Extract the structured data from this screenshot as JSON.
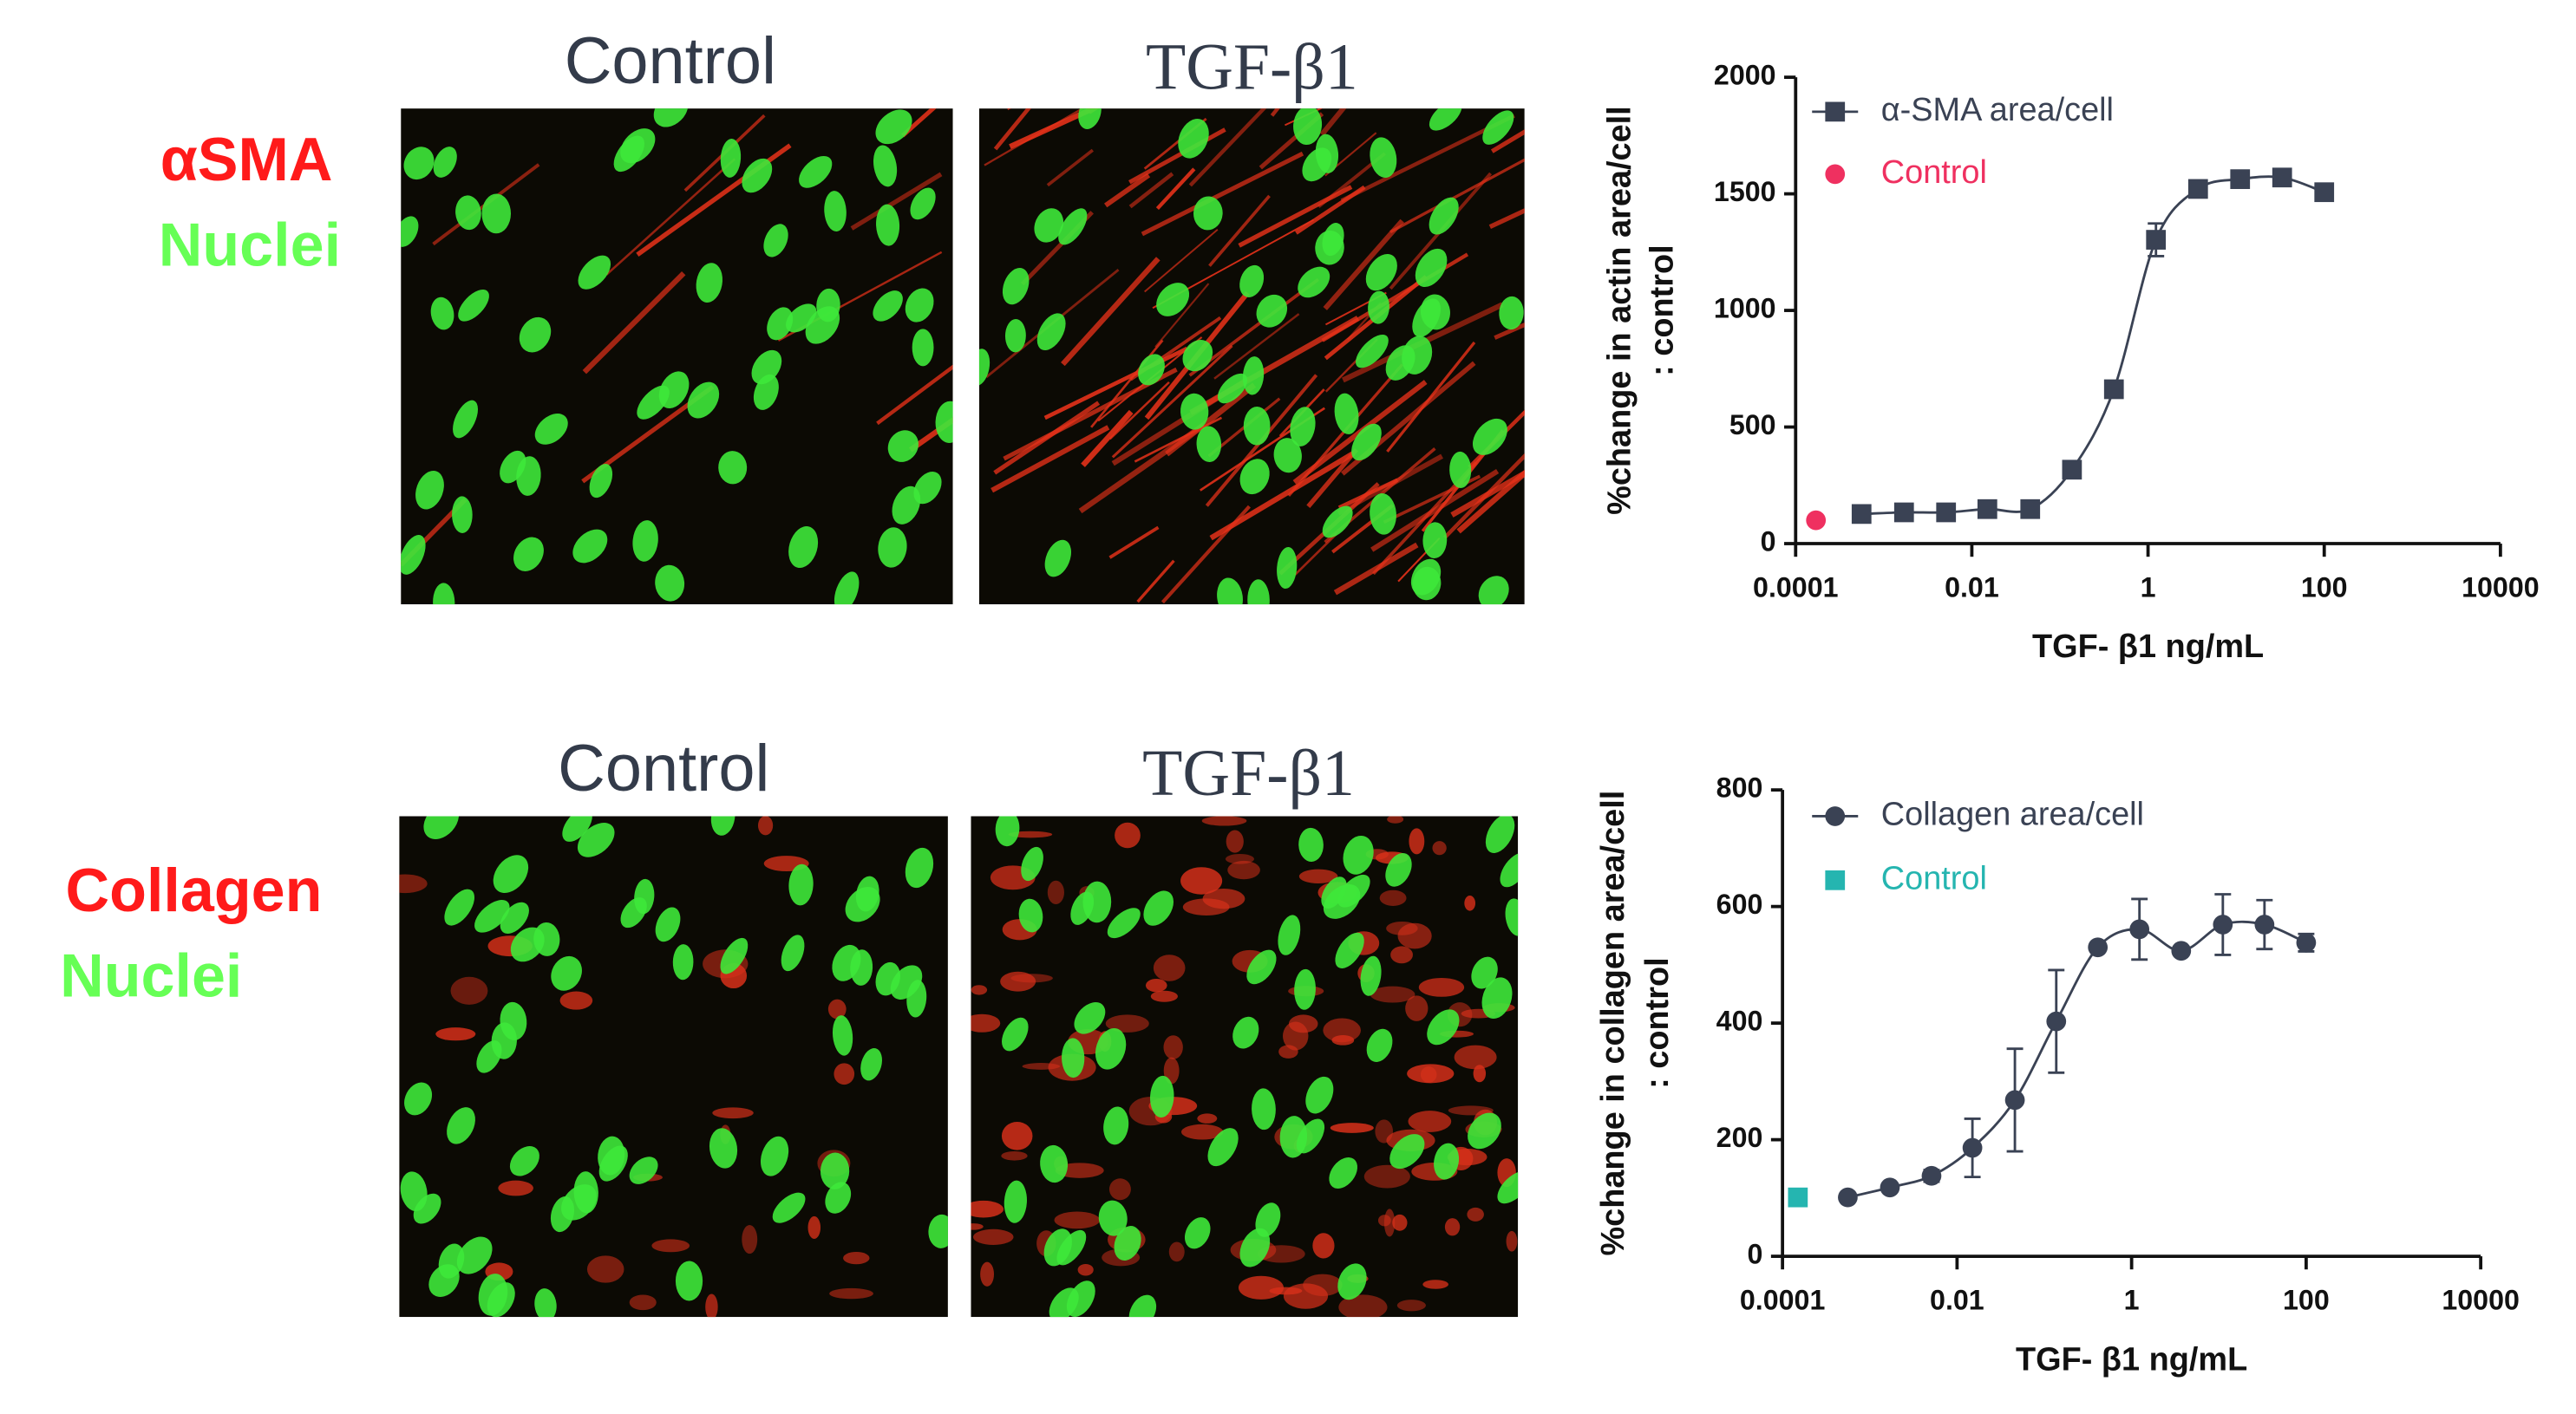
{
  "panels": [
    {
      "label_1": "αSMA",
      "label_2": "Nuclei",
      "image_titles": [
        "Control",
        "TGF-β1"
      ]
    },
    {
      "label_1": "Collagen",
      "label_2": "Nuclei",
      "image_titles": [
        "Control",
        "TGF-β1"
      ]
    }
  ],
  "chart_data": [
    {
      "type": "scatter",
      "xscale": "log",
      "xlabel": "TGF- β1 ng/mL",
      "ylabel": [
        "%change in actin area/cell",
        ": control"
      ],
      "xlim": [
        0.0001,
        10000
      ],
      "xticks": [
        0.0001,
        0.01,
        1,
        100,
        10000
      ],
      "ylim": [
        0,
        2000
      ],
      "yticks": [
        0,
        500,
        1000,
        1500,
        2000
      ],
      "series": [
        {
          "name": "α-SMA area/cell",
          "color": "#3a4254",
          "marker": "square",
          "fit": true,
          "x": [
            0.00056,
            0.0017,
            0.0051,
            0.015,
            0.046,
            0.137,
            0.41,
            1.23,
            3.7,
            11.1,
            33.3,
            100
          ],
          "values": [
            127,
            134,
            134,
            148,
            148,
            317,
            662,
            1303,
            1521,
            1563,
            1570,
            1507
          ],
          "errors": [
            null,
            null,
            null,
            null,
            null,
            null,
            null,
            70,
            null,
            null,
            null,
            null
          ]
        },
        {
          "name": "Control",
          "color": "#ef3060",
          "marker": "circle",
          "x": [
            0.00017
          ],
          "values": [
            100
          ]
        }
      ]
    },
    {
      "type": "scatter",
      "xscale": "log",
      "xlabel": "TGF- β1 ng/mL",
      "ylabel": [
        "%change in collagen area/cell",
        ": control"
      ],
      "xlim": [
        0.0001,
        10000
      ],
      "xticks": [
        0.0001,
        0.01,
        1,
        100,
        10000
      ],
      "ylim": [
        0,
        800
      ],
      "yticks": [
        0,
        200,
        400,
        600,
        800
      ],
      "series": [
        {
          "name": "Collagen area/cell",
          "color": "#3a4254",
          "marker": "circle",
          "fit": true,
          "x": [
            0.00056,
            0.0017,
            0.0051,
            0.015,
            0.046,
            0.137,
            0.41,
            1.23,
            3.7,
            11.1,
            33.3,
            100
          ],
          "values": [
            101,
            118,
            138,
            186,
            268,
            403,
            530,
            561,
            524,
            569,
            569,
            538
          ],
          "errors": [
            null,
            null,
            10,
            50,
            88,
            88,
            null,
            52,
            null,
            52,
            42,
            15
          ]
        },
        {
          "name": "Control",
          "color": "#25b5b0",
          "marker": "square",
          "x": [
            0.00015
          ],
          "values": [
            101
          ]
        }
      ]
    }
  ]
}
